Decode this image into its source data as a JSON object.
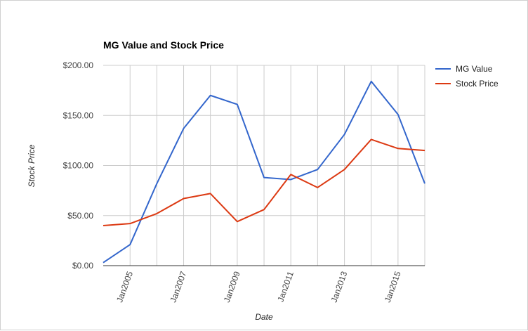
{
  "chart_data": {
    "type": "line",
    "title": "MG Value and Stock Price",
    "xlabel": "Date",
    "ylabel": "Stock Price",
    "x": [
      "2004-01-01",
      "2005-01-01",
      "2006-01-01",
      "2007-01-01",
      "2008-01-01",
      "2009-01-01",
      "2010-01-01",
      "2011-01-01",
      "2012-01-01",
      "2013-01-01",
      "2014-01-01",
      "2015-01-01",
      "2016-01-01"
    ],
    "xlim": [
      "2004-01-01",
      "2016-01-01"
    ],
    "x_ticks": [
      {
        "label": "Jan2005",
        "date": "2005-01-01"
      },
      {
        "label": "Jan2007",
        "date": "2007-01-01"
      },
      {
        "label": "Jan2009",
        "date": "2009-01-01"
      },
      {
        "label": "Jan2011",
        "date": "2011-01-01"
      },
      {
        "label": "Jan2013",
        "date": "2013-01-01"
      },
      {
        "label": "Jan2015",
        "date": "2015-01-01"
      }
    ],
    "ylim": [
      0,
      200
    ],
    "y_ticks": [
      {
        "label": "$0.00",
        "value": 0
      },
      {
        "label": "$50.00",
        "value": 50
      },
      {
        "label": "$100.00",
        "value": 100
      },
      {
        "label": "$150.00",
        "value": 150
      },
      {
        "label": "$200.00",
        "value": 200
      }
    ],
    "grid": true,
    "legend_position": "right",
    "series": [
      {
        "name": "MG Value",
        "color": "#3366cc",
        "values": [
          3,
          21,
          82,
          137,
          170,
          161,
          88,
          86,
          96,
          131,
          184,
          151,
          82
        ]
      },
      {
        "name": "Stock Price",
        "color": "#dc3912",
        "values": [
          40,
          42,
          52,
          67,
          72,
          44,
          56,
          91,
          78,
          96,
          126,
          117,
          115
        ]
      }
    ]
  }
}
